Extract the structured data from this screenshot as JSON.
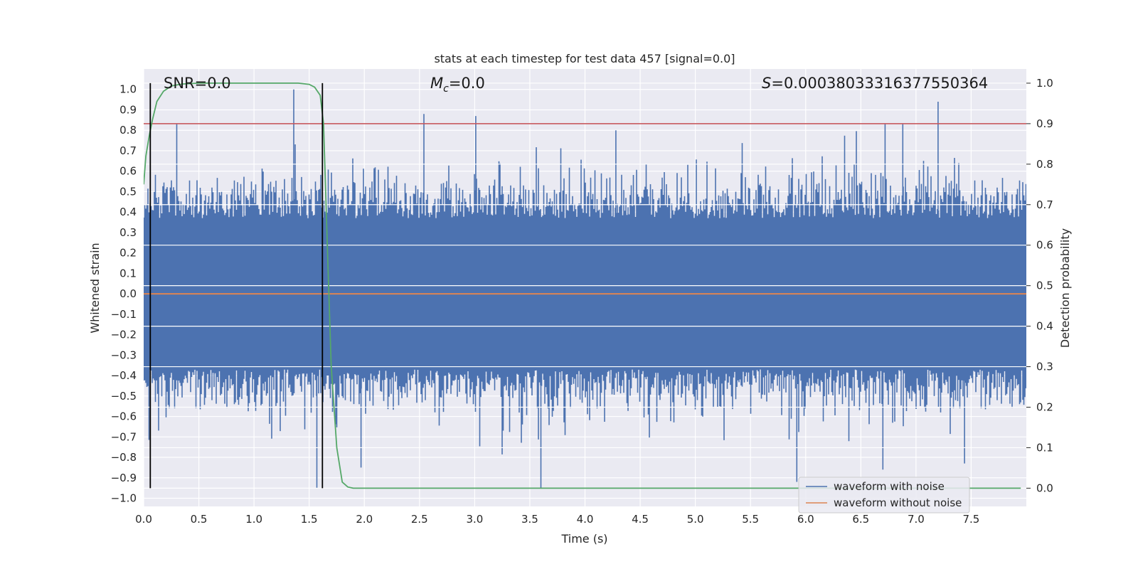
{
  "chart_data": {
    "type": "line",
    "title": "stats at each timestep for test data 457 [signal=0.0]",
    "xlabel": "Time (s)",
    "ylabel": "Whitened strain",
    "y2label": "Detection probability",
    "xlim": [
      0.0,
      8.0
    ],
    "ylim": [
      -1.04,
      1.1
    ],
    "y2lim": [
      -0.045,
      1.035
    ],
    "xticks": [
      "0.0",
      "0.5",
      "1.0",
      "1.5",
      "2.0",
      "2.5",
      "3.0",
      "3.5",
      "4.0",
      "4.5",
      "5.0",
      "5.5",
      "6.0",
      "6.5",
      "7.0",
      "7.5"
    ],
    "yticks": [
      "1.0",
      "0.9",
      "0.8",
      "0.7",
      "0.6",
      "0.5",
      "0.4",
      "0.3",
      "0.2",
      "0.1",
      "0.0",
      "-0.1",
      "-0.2",
      "-0.3",
      "-0.4",
      "-0.5",
      "-0.6",
      "-0.7",
      "-0.8",
      "-0.9",
      "-1.0"
    ],
    "y2ticks": [
      "1.0",
      "0.9",
      "0.8",
      "0.7",
      "0.6",
      "0.5",
      "0.4",
      "0.3",
      "0.2",
      "0.1",
      "0.0"
    ],
    "grid": true,
    "legend_position": "bottom-right",
    "annotations": {
      "snr": "SNR=0.0",
      "mc_symbol": "M",
      "mc_sub": "c",
      "mc_value": "=0.0",
      "s_symbol": "S",
      "s_value": "=0.00038033316377550364"
    },
    "colors": {
      "noisy": "#4c72b0",
      "clean": "#dd8452",
      "prob": "#55a868",
      "threshold": "#c44e52",
      "vline": "#000000",
      "background": "#eaeaf2",
      "grid": "#ffffff"
    },
    "series": [
      {
        "name": "waveform with noise",
        "kind": "noise-band",
        "min": -0.97,
        "max": 0.94
      },
      {
        "name": "waveform without noise",
        "x": [
          0.0,
          8.0
        ],
        "y": [
          0.0,
          0.0
        ]
      }
    ],
    "detection_probability": {
      "x": [
        0.0,
        0.02,
        0.05,
        0.08,
        0.12,
        0.18,
        0.25,
        0.35,
        0.5,
        0.75,
        1.0,
        1.25,
        1.4,
        1.5,
        1.55,
        1.6,
        1.63,
        1.67,
        1.7,
        1.75,
        1.8,
        1.85,
        1.9,
        2.0,
        3.0,
        4.0,
        5.0,
        6.0,
        7.0,
        7.95
      ],
      "y": [
        0.75,
        0.82,
        0.87,
        0.91,
        0.955,
        0.98,
        0.993,
        0.998,
        1.0,
        1.0,
        1.0,
        1.0,
        1.0,
        0.997,
        0.99,
        0.97,
        0.9,
        0.55,
        0.3,
        0.1,
        0.015,
        0.003,
        0.0,
        0.0,
        0.0,
        0.0,
        0.0,
        0.0,
        0.0,
        0.0
      ]
    },
    "threshold": 0.9,
    "vlines": [
      0.06,
      1.62
    ]
  }
}
